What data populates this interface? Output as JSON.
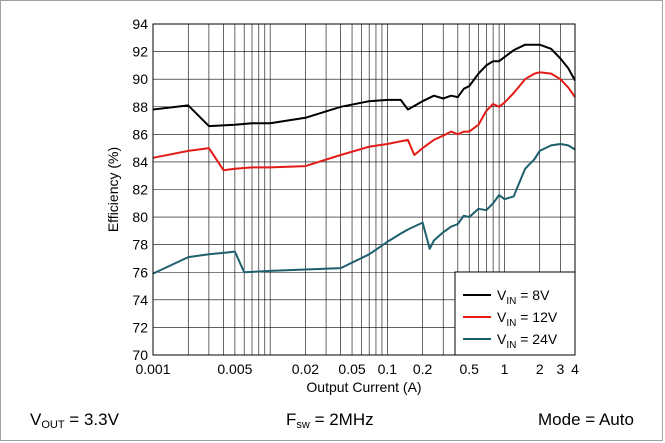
{
  "chart_data": {
    "type": "line",
    "x_scale": "log",
    "xlabel": "Output Current (A)",
    "ylabel": "Efficiency (%)",
    "xlim": [
      0.001,
      4
    ],
    "ylim": [
      70,
      94
    ],
    "x_ticks": [
      {
        "value": 0.001,
        "label": "0.001"
      },
      {
        "value": 0.005,
        "label": "0.005"
      },
      {
        "value": 0.02,
        "label": "0.02"
      },
      {
        "value": 0.05,
        "label": "0.05"
      },
      {
        "value": 0.1,
        "label": "0.1"
      },
      {
        "value": 0.2,
        "label": "0.2"
      },
      {
        "value": 0.5,
        "label": "0.5"
      },
      {
        "value": 1,
        "label": "1"
      },
      {
        "value": 2,
        "label": "2"
      },
      {
        "value": 3,
        "label": "3"
      },
      {
        "value": 4,
        "label": "4"
      }
    ],
    "y_ticks": [
      70,
      72,
      74,
      76,
      78,
      80,
      82,
      84,
      86,
      88,
      90,
      92,
      94
    ],
    "grid": true,
    "legend_position": "bottom-right",
    "series": [
      {
        "key": "vin8",
        "name_main": "V",
        "name_sub": "IN",
        "name_rest": " = 8V",
        "color": "#000000",
        "x": [
          0.001,
          0.002,
          0.003,
          0.005,
          0.007,
          0.01,
          0.02,
          0.04,
          0.07,
          0.1,
          0.13,
          0.15,
          0.2,
          0.25,
          0.3,
          0.35,
          0.4,
          0.45,
          0.5,
          0.6,
          0.7,
          0.8,
          0.9,
          1.0,
          1.2,
          1.5,
          1.8,
          2.0,
          2.5,
          3.0,
          3.5,
          4.0
        ],
        "y": [
          87.8,
          88.1,
          86.6,
          86.7,
          86.8,
          86.8,
          87.2,
          88.0,
          88.4,
          88.5,
          88.5,
          87.8,
          88.4,
          88.8,
          88.6,
          88.8,
          88.7,
          89.3,
          89.5,
          90.4,
          91.0,
          91.3,
          91.3,
          91.6,
          92.1,
          92.5,
          92.5,
          92.5,
          92.2,
          91.5,
          90.8,
          89.9
        ]
      },
      {
        "key": "vin12",
        "name_main": "V",
        "name_sub": "IN",
        "name_rest": " = 12V",
        "color": "#e41b17",
        "x": [
          0.001,
          0.002,
          0.003,
          0.004,
          0.005,
          0.007,
          0.01,
          0.02,
          0.04,
          0.07,
          0.1,
          0.15,
          0.17,
          0.2,
          0.25,
          0.3,
          0.35,
          0.4,
          0.45,
          0.5,
          0.6,
          0.7,
          0.8,
          0.9,
          1.0,
          1.2,
          1.5,
          1.8,
          2.0,
          2.5,
          3.0,
          3.5,
          4.0
        ],
        "y": [
          84.3,
          84.8,
          85.0,
          83.4,
          83.5,
          83.6,
          83.6,
          83.7,
          84.5,
          85.1,
          85.3,
          85.6,
          84.5,
          85.0,
          85.6,
          85.9,
          86.2,
          86.0,
          86.2,
          86.2,
          86.7,
          87.7,
          88.2,
          88.0,
          88.3,
          89.0,
          90.0,
          90.4,
          90.5,
          90.4,
          90.0,
          89.4,
          88.7
        ]
      },
      {
        "key": "vin24",
        "name_main": "V",
        "name_sub": "IN",
        "name_rest": " = 24V",
        "color": "#1e5f6e",
        "x": [
          0.001,
          0.002,
          0.003,
          0.004,
          0.005,
          0.006,
          0.01,
          0.02,
          0.04,
          0.07,
          0.1,
          0.13,
          0.15,
          0.2,
          0.23,
          0.25,
          0.3,
          0.35,
          0.4,
          0.45,
          0.5,
          0.6,
          0.7,
          0.8,
          0.9,
          1.0,
          1.2,
          1.5,
          1.8,
          2.0,
          2.5,
          3.0,
          3.5,
          4.0
        ],
        "y": [
          75.9,
          77.1,
          77.3,
          77.4,
          77.5,
          76.0,
          76.1,
          76.2,
          76.3,
          77.3,
          78.2,
          78.8,
          79.1,
          79.6,
          77.7,
          78.3,
          78.9,
          79.3,
          79.5,
          80.1,
          80.0,
          80.6,
          80.5,
          81.0,
          81.6,
          81.3,
          81.5,
          83.5,
          84.2,
          84.8,
          85.2,
          85.3,
          85.2,
          84.9
        ]
      }
    ],
    "conditions": [
      {
        "main": "V",
        "sub": "OUT",
        "rest": " = 3.3V"
      },
      {
        "main": "F",
        "sub": "sw",
        "rest": " = 2MHz"
      },
      {
        "main": "Mode = Auto",
        "sub": "",
        "rest": ""
      }
    ]
  }
}
